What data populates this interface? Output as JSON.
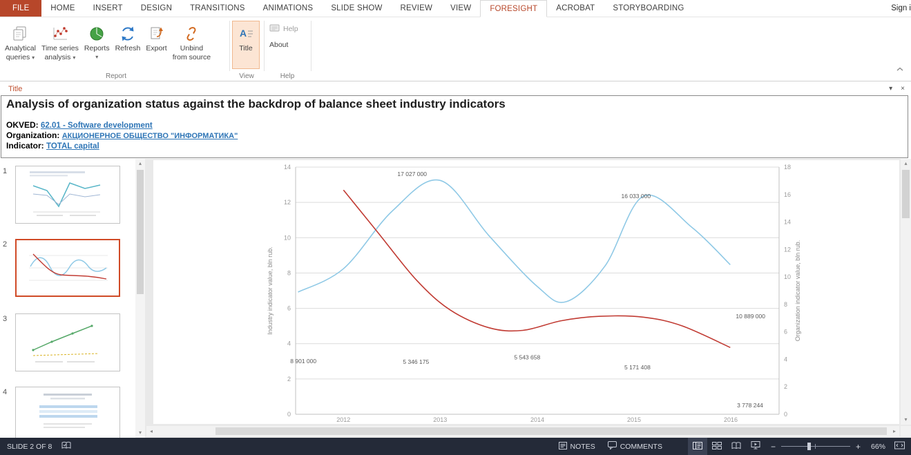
{
  "icons": {
    "dropdown": "▾",
    "panel_collapse": "▾",
    "panel_close": "×",
    "scroll_up": "▴",
    "scroll_down": "▾",
    "scroll_left": "◂",
    "scroll_right": "▸",
    "zoom_out": "−",
    "zoom_in": "+"
  },
  "tabs": {
    "file": "FILE",
    "items": [
      "HOME",
      "INSERT",
      "DESIGN",
      "TRANSITIONS",
      "ANIMATIONS",
      "SLIDE SHOW",
      "REVIEW",
      "VIEW",
      "FORESIGHT",
      "ACROBAT",
      "STORYBOARDING"
    ],
    "active": "FORESIGHT",
    "sign_in": "Sign i"
  },
  "ribbon": {
    "groups": [
      "Report",
      "View",
      "Help"
    ],
    "buttons": {
      "analytical_queries": {
        "line1": "Analytical",
        "line2": "queries"
      },
      "time_series": {
        "line1": "Time series",
        "line2": "analysis"
      },
      "reports": {
        "label": "Reports"
      },
      "refresh": {
        "label": "Refresh"
      },
      "export": {
        "label": "Export"
      },
      "unbind": {
        "line1": "Unbind",
        "line2": "from source"
      },
      "title": {
        "label": "Title"
      },
      "help": {
        "label": "Help"
      },
      "about": {
        "label": "About"
      }
    }
  },
  "title_panel": {
    "header": "Title",
    "heading": "Analysis of organization status against the backdrop of balance sheet industry indicators",
    "fields": [
      {
        "label": "OKVED:",
        "value": "62.01 - Software development"
      },
      {
        "label": "Organization:",
        "value": "АКЦИОНЕРНОЕ ОБЩЕСТВО \"ИНФОРМАТИКА\""
      },
      {
        "label": "Indicator:",
        "value": "TOTAL capital"
      }
    ]
  },
  "slides": {
    "items": [
      {
        "number": "1"
      },
      {
        "number": "2"
      },
      {
        "number": "3"
      },
      {
        "number": "4"
      }
    ],
    "selected": "2"
  },
  "status_bar": {
    "slide_indicator": "SLIDE 2 OF 8",
    "notes_label": "NOTES",
    "comments_label": "COMMENTS",
    "zoom_level": "66%"
  },
  "chart_data": {
    "type": "line",
    "x_ticks": {
      "labels": [
        "2012",
        "2013",
        "2014",
        "2015",
        "2016"
      ],
      "fracs": [
        0.099,
        0.299,
        0.5,
        0.7,
        0.9
      ]
    },
    "left_axis": {
      "title": "Industry indicator value, bln rub.",
      "range": [
        0,
        14
      ],
      "tick_step": 2
    },
    "right_axis": {
      "title": "Organization indicator value, bln rub.",
      "range": [
        0,
        18
      ],
      "tick_step": 2
    },
    "series": [
      {
        "name": "Organization indicator",
        "axis": "right",
        "color": "#8FC9E6",
        "points": [
          [
            0.005,
            8.9
          ],
          [
            0.099,
            10.6
          ],
          [
            0.2,
            14.8
          ],
          [
            0.299,
            17.03
          ],
          [
            0.4,
            13.0
          ],
          [
            0.5,
            9.3
          ],
          [
            0.56,
            8.2
          ],
          [
            0.64,
            10.8
          ],
          [
            0.72,
            15.9
          ],
          [
            0.82,
            13.6
          ],
          [
            0.899,
            10.89
          ]
        ]
      },
      {
        "name": "Industry indicator",
        "axis": "left",
        "color": "#C13B33",
        "points": [
          [
            0.099,
            12.7
          ],
          [
            0.17,
            10.3
          ],
          [
            0.25,
            7.6
          ],
          [
            0.32,
            5.9
          ],
          [
            0.4,
            4.9
          ],
          [
            0.47,
            4.75
          ],
          [
            0.55,
            5.3
          ],
          [
            0.63,
            5.55
          ],
          [
            0.72,
            5.5
          ],
          [
            0.8,
            5.0
          ],
          [
            0.899,
            3.78
          ]
        ]
      }
    ],
    "data_labels": [
      {
        "text": "17 027 000",
        "f": 0.241,
        "yf": 0.028
      },
      {
        "text": "16 033 000",
        "f": 0.704,
        "yf": 0.118
      },
      {
        "text": "10 889 000",
        "f": 0.941,
        "yf": 0.603
      },
      {
        "text": "8 901 000",
        "f": 0.016,
        "yf": 0.785
      },
      {
        "text": "5 346 175",
        "f": 0.249,
        "yf": 0.788
      },
      {
        "text": "5 543 658",
        "f": 0.479,
        "yf": 0.769
      },
      {
        "text": "5 171 408",
        "f": 0.707,
        "yf": 0.81
      },
      {
        "text": "3 778 244",
        "f": 0.94,
        "yf": 0.964
      }
    ],
    "grid_color": "#DCDCDC",
    "axis_color": "#C0C0C0",
    "tick_color": "#9B9B9B",
    "label_color": "#595959"
  }
}
